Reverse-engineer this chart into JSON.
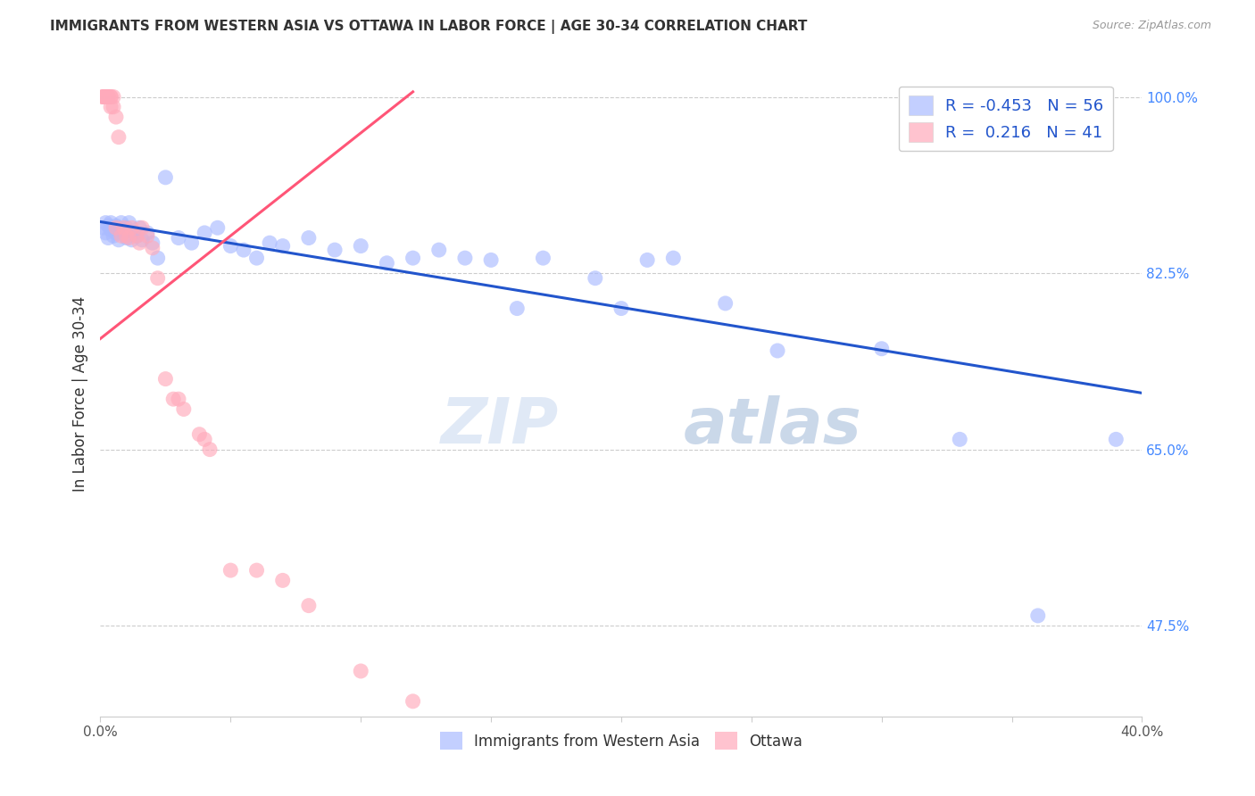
{
  "title": "IMMIGRANTS FROM WESTERN ASIA VS OTTAWA IN LABOR FORCE | AGE 30-34 CORRELATION CHART",
  "source": "Source: ZipAtlas.com",
  "ylabel": "In Labor Force | Age 30-34",
  "x_min": 0.0,
  "x_max": 0.4,
  "y_min": 0.385,
  "y_max": 1.025,
  "x_ticks": [
    0.0,
    0.05,
    0.1,
    0.15,
    0.2,
    0.25,
    0.3,
    0.35,
    0.4
  ],
  "x_tick_labels": [
    "0.0%",
    "",
    "",
    "",
    "",
    "",
    "",
    "",
    "40.0%"
  ],
  "y_ticks_right": [
    1.0,
    0.825,
    0.65,
    0.475
  ],
  "y_tick_labels_right": [
    "100.0%",
    "82.5%",
    "65.0%",
    "47.5%"
  ],
  "grid_color": "#cccccc",
  "background_color": "#ffffff",
  "blue_color": "#aabbff",
  "pink_color": "#ffaabb",
  "blue_line_color": "#2255cc",
  "pink_line_color": "#ff5577",
  "legend_R_blue": "-0.453",
  "legend_N_blue": "56",
  "legend_R_pink": "0.216",
  "legend_N_pink": "41",
  "legend_label_blue": "Immigrants from Western Asia",
  "legend_label_pink": "Ottawa",
  "watermark_zip": "ZIP",
  "watermark_atlas": "atlas",
  "blue_scatter_x": [
    0.001,
    0.002,
    0.002,
    0.003,
    0.003,
    0.004,
    0.004,
    0.005,
    0.005,
    0.006,
    0.006,
    0.007,
    0.007,
    0.008,
    0.009,
    0.01,
    0.01,
    0.011,
    0.012,
    0.013,
    0.014,
    0.015,
    0.016,
    0.018,
    0.02,
    0.022,
    0.025,
    0.03,
    0.035,
    0.04,
    0.045,
    0.05,
    0.055,
    0.06,
    0.065,
    0.07,
    0.08,
    0.09,
    0.1,
    0.11,
    0.12,
    0.13,
    0.14,
    0.15,
    0.16,
    0.17,
    0.19,
    0.2,
    0.21,
    0.22,
    0.24,
    0.26,
    0.3,
    0.33,
    0.36,
    0.39
  ],
  "blue_scatter_y": [
    0.87,
    0.875,
    0.865,
    0.872,
    0.86,
    0.868,
    0.875,
    0.862,
    0.87,
    0.865,
    0.872,
    0.858,
    0.87,
    0.875,
    0.865,
    0.86,
    0.87,
    0.875,
    0.858,
    0.865,
    0.862,
    0.87,
    0.858,
    0.865,
    0.855,
    0.84,
    0.92,
    0.86,
    0.855,
    0.865,
    0.87,
    0.852,
    0.848,
    0.84,
    0.855,
    0.852,
    0.86,
    0.848,
    0.852,
    0.835,
    0.84,
    0.848,
    0.84,
    0.838,
    0.79,
    0.84,
    0.82,
    0.79,
    0.838,
    0.84,
    0.795,
    0.748,
    0.75,
    0.66,
    0.485,
    0.66
  ],
  "pink_scatter_x": [
    0.001,
    0.001,
    0.001,
    0.002,
    0.002,
    0.002,
    0.003,
    0.003,
    0.003,
    0.004,
    0.004,
    0.004,
    0.005,
    0.005,
    0.006,
    0.006,
    0.007,
    0.008,
    0.009,
    0.01,
    0.011,
    0.012,
    0.014,
    0.015,
    0.016,
    0.018,
    0.02,
    0.022,
    0.025,
    0.028,
    0.03,
    0.032,
    0.038,
    0.04,
    0.042,
    0.05,
    0.06,
    0.07,
    0.08,
    0.1,
    0.12
  ],
  "pink_scatter_y": [
    1.0,
    1.0,
    1.0,
    1.0,
    1.0,
    1.0,
    1.0,
    1.0,
    1.0,
    1.0,
    1.0,
    0.99,
    0.99,
    1.0,
    0.98,
    0.87,
    0.96,
    0.862,
    0.87,
    0.862,
    0.86,
    0.87,
    0.862,
    0.855,
    0.87,
    0.862,
    0.85,
    0.82,
    0.72,
    0.7,
    0.7,
    0.69,
    0.665,
    0.66,
    0.65,
    0.53,
    0.53,
    0.52,
    0.495,
    0.43,
    0.4
  ],
  "blue_trend_x": [
    0.0,
    0.4
  ],
  "blue_trend_y": [
    0.876,
    0.706
  ],
  "pink_trend_x": [
    0.0,
    0.12
  ],
  "pink_trend_y": [
    0.76,
    1.005
  ]
}
